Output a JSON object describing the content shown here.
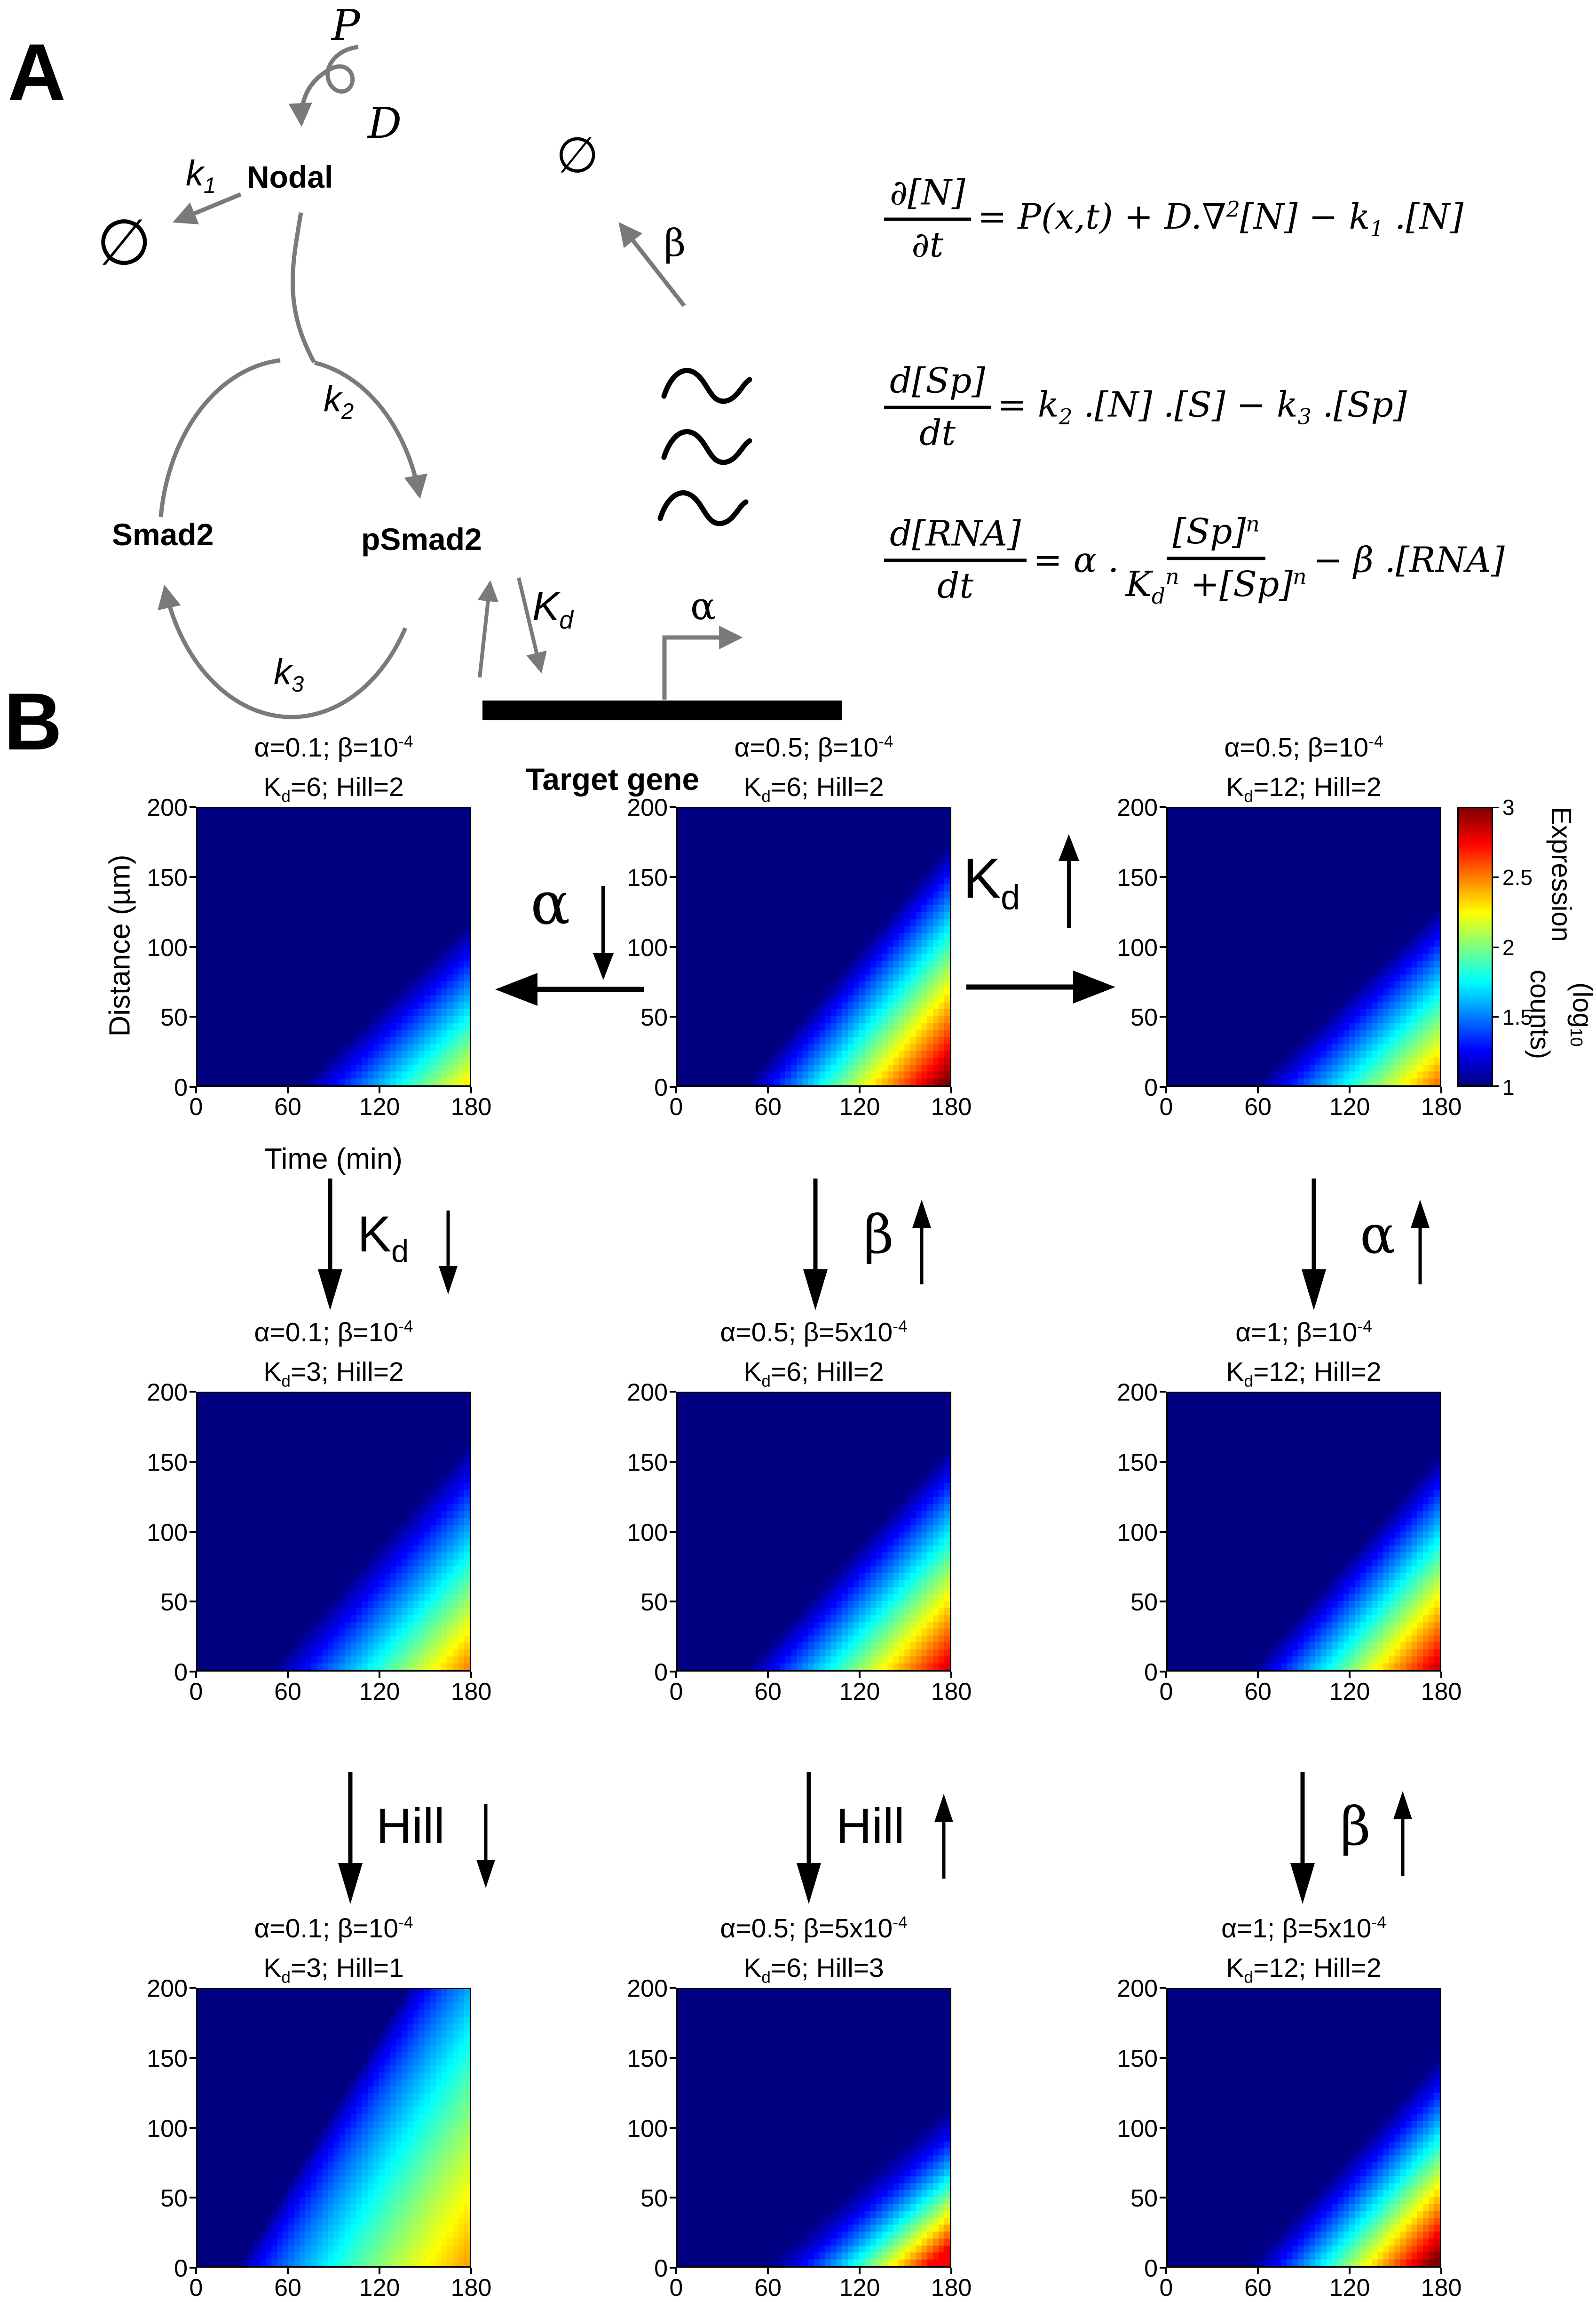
{
  "panel_a": {
    "label": "A",
    "production_label": "P",
    "diffusion_label": "D",
    "degradation_left": "∅",
    "degradation_right": "∅",
    "k1": "k_{1}",
    "k2": "k_{2}",
    "k3": "k_{3}",
    "nodal": "Nodal",
    "smad2": "Smad2",
    "psmad2": "pSmad2",
    "kd": "K_{d}",
    "alpha": "α",
    "beta": "β",
    "target_gene": "Target gene",
    "eq1": {
      "num": "∂[N]",
      "den": "∂t",
      "rhs": "= P(x,t) + D.∇^{2}[N] − k_{1} .[N]"
    },
    "eq2": {
      "num": "d[Sp]",
      "den": "dt",
      "rhs": "= k_{2} .[N] .[S] − k_{3} .[Sp]"
    },
    "eq3": {
      "num": "d[RNA]",
      "den": "dt",
      "pre": "= α .",
      "frac_num": "[Sp]^{n}",
      "frac_den": "K_{d}^{n} +[Sp]^{n}",
      "post": "− β .[RNA]"
    }
  },
  "panel_b": {
    "label": "B",
    "xlabel": "Time (min)",
    "ylabel": "Distance (µm)",
    "colorbar_label_line1": "Expression",
    "colorbar_label_line2": "(log_{10} counts)"
  },
  "chart_data": {
    "type": "heatmap",
    "grid": {
      "rows": 3,
      "cols": 3
    },
    "x": {
      "label": "Time (min)",
      "range": [
        0,
        180
      ],
      "ticks": [
        0,
        60,
        120,
        180
      ]
    },
    "y": {
      "label": "Distance (µm)",
      "range": [
        0,
        200
      ],
      "ticks": [
        0,
        50,
        100,
        150,
        200
      ]
    },
    "colorbar": {
      "label": "Expression (log10 counts)",
      "range": [
        1,
        3
      ],
      "ticks": [
        3,
        2.5,
        2,
        1.5,
        1
      ],
      "colormap": "jet",
      "stops_bottom_to_top": [
        "#00007f",
        "#0000ff",
        "#00ffff",
        "#ffff00",
        "#ff0000",
        "#7f0000"
      ]
    },
    "panels": [
      {
        "row": 1,
        "col": 1,
        "title_line1": "α=0.1; β=10^{-4}",
        "title_line2": "K_{d}=6; Hill=2",
        "params": {
          "alpha": 0.1,
          "beta": "1e-4",
          "kd": 6,
          "hill": 2
        },
        "pattern": {
          "t0": 68,
          "v": 1.05,
          "vmax": 2.35,
          "spread": 115,
          "power": 1
        }
      },
      {
        "row": 1,
        "col": 2,
        "title_line1": "α=0.5; β=10^{-4}",
        "title_line2": "K_{d}=6; Hill=2",
        "params": {
          "alpha": 0.5,
          "beta": "1e-4",
          "kd": 6,
          "hill": 2
        },
        "pattern": {
          "t0": 45,
          "v": 1.3,
          "vmax": 3.0,
          "spread": 130,
          "power": 1
        }
      },
      {
        "row": 1,
        "col": 3,
        "title_line1": "α=0.5; β=10^{-4}",
        "title_line2": "K_{d}=12; Hill=2",
        "params": {
          "alpha": 0.5,
          "beta": "1e-4",
          "kd": 12,
          "hill": 2
        },
        "pattern": {
          "t0": 58,
          "v": 1.06,
          "vmax": 2.6,
          "spread": 125,
          "power": 1
        }
      },
      {
        "row": 2,
        "col": 1,
        "title_line1": "α=0.1; β=10^{-4}",
        "title_line2": "K_{d}=3; Hill=2",
        "params": {
          "alpha": 0.1,
          "beta": "1e-4",
          "kd": 3,
          "hill": 2
        },
        "pattern": {
          "t0": 48,
          "v": 1.25,
          "vmax": 2.5,
          "spread": 130,
          "power": 1
        }
      },
      {
        "row": 2,
        "col": 2,
        "title_line1": "α=0.5; β=5x10^{-4}",
        "title_line2": "K_{d}=6; Hill=2",
        "params": {
          "alpha": 0.5,
          "beta": "5e-4",
          "kd": 6,
          "hill": 2
        },
        "pattern": {
          "t0": 45,
          "v": 1.2,
          "vmax": 2.8,
          "spread": 130,
          "power": 1
        }
      },
      {
        "row": 2,
        "col": 3,
        "title_line1": "α=1; β=10^{-4}",
        "title_line2": "K_{d}=12; Hill=2",
        "params": {
          "alpha": 1,
          "beta": "1e-4",
          "kd": 12,
          "hill": 2
        },
        "pattern": {
          "t0": 55,
          "v": 1.25,
          "vmax": 2.9,
          "spread": 125,
          "power": 1
        }
      },
      {
        "row": 3,
        "col": 1,
        "title_line1": "α=0.1; β=10^{-4}",
        "title_line2": "K_{d}=3; Hill=1",
        "params": {
          "alpha": 0.1,
          "beta": "1e-4",
          "kd": 3,
          "hill": 1
        },
        "pattern": {
          "t0": 28,
          "v": 1.8,
          "vmax": 2.5,
          "spread": 160,
          "power": 0.7
        }
      },
      {
        "row": 3,
        "col": 2,
        "title_line1": "α=0.5; β=5x10^{-4}",
        "title_line2": "K_{d}=6; Hill=3",
        "params": {
          "alpha": 0.5,
          "beta": "5e-4",
          "kd": 6,
          "hill": 3
        },
        "pattern": {
          "t0": 55,
          "v": 0.95,
          "vmax": 2.75,
          "spread": 110,
          "power": 1.35
        }
      },
      {
        "row": 3,
        "col": 3,
        "title_line1": "α=1; β=5x10^{-4}",
        "title_line2": "K_{d}=12; Hill=2",
        "params": {
          "alpha": 1,
          "beta": "5e-4",
          "kd": 12,
          "hill": 2
        },
        "pattern": {
          "t0": 53,
          "v": 1.2,
          "vmax": 3.0,
          "spread": 120,
          "power": 1.1
        }
      }
    ],
    "transitions": {
      "row1_left": {
        "label": "α",
        "arrow": "down"
      },
      "row1_right": {
        "label": "K_{d}",
        "arrow": "up"
      },
      "r1r2_c1": {
        "label": "K_{d}",
        "arrow": "down"
      },
      "r1r2_c2": {
        "label": "β",
        "arrow": "up"
      },
      "r1r2_c3": {
        "label": "α",
        "arrow": "up"
      },
      "r2r3_c1": {
        "label": "Hill",
        "arrow": "down"
      },
      "r2r3_c2": {
        "label": "Hill",
        "arrow": "up"
      },
      "r2r3_c3": {
        "label": "β",
        "arrow": "up"
      }
    }
  }
}
